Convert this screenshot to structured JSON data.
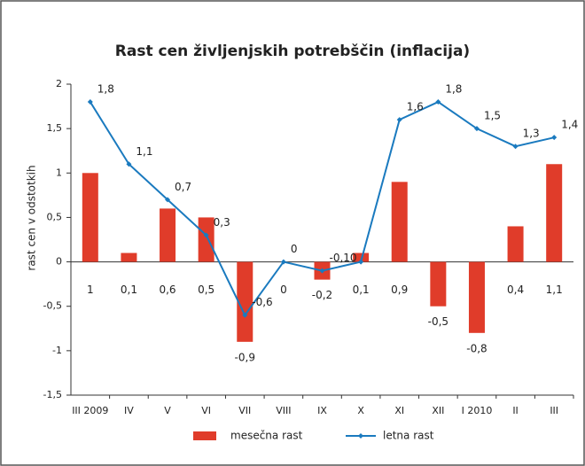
{
  "chart_data": {
    "type": "bar-line",
    "title": "Rast cen življenjskih potrebščin (inflacija)",
    "y_label": "rast cen v odstotkih",
    "categories": [
      "III 2009",
      "IV",
      "V",
      "VI",
      "VII",
      "VIII",
      "IX",
      "X",
      "XI",
      "XII",
      "I 2010",
      "II",
      "III"
    ],
    "ylim": [
      -1.5,
      2
    ],
    "yticks": [
      {
        "value": -1.5,
        "label": "-1,5"
      },
      -1,
      {
        "value": -0.5,
        "label": "-0,5"
      },
      0,
      {
        "value": 0.5,
        "label": "0,5"
      },
      1,
      {
        "value": 1.5,
        "label": "1,5"
      },
      2
    ],
    "legend": "bottom",
    "series": [
      {
        "name": "mesečna rast",
        "kind": "bar",
        "color": "#e03c2a",
        "values": [
          1,
          0.1,
          0.6,
          0.5,
          -0.9,
          0,
          -0.2,
          0.1,
          0.9,
          -0.5,
          -0.8,
          0.4,
          1.1
        ],
        "value_labels": [
          "1",
          "0,1",
          "0,6",
          "0,5",
          "-0,9",
          "0",
          "-0,2",
          "0,1",
          "0,9",
          "-0,5",
          "-0,8",
          "0,4",
          "1,1"
        ]
      },
      {
        "name": "letna rast",
        "kind": "line",
        "color": "#1a7abf",
        "values": [
          1.8,
          1.1,
          0.7,
          0.3,
          -0.6,
          0,
          -0.1,
          0,
          1.6,
          1.8,
          1.5,
          1.3,
          1.4
        ],
        "value_labels": [
          "1,8",
          "1,1",
          "0,7",
          "0,3",
          "-0,6",
          "0",
          "-0,10",
          null,
          "1,6",
          "1,8",
          "1,5",
          "1,3",
          "1,4"
        ]
      }
    ]
  }
}
